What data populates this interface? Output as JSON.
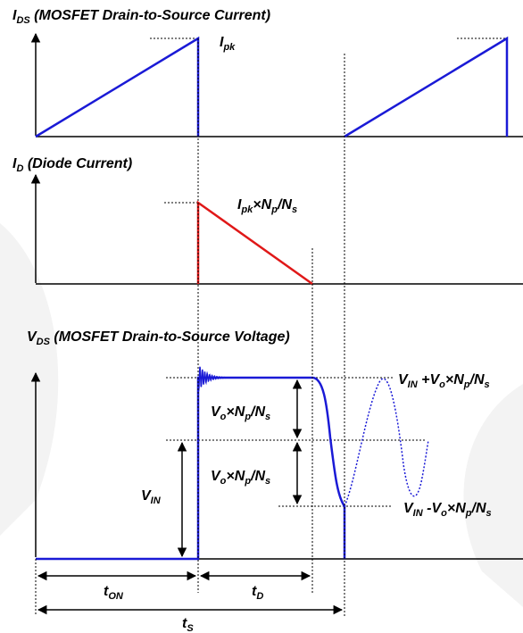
{
  "colors": {
    "blue": "#1a1ad6",
    "red": "#e01818",
    "black": "#000000"
  },
  "ids_panel": {
    "title_symbol": "I",
    "title_sub": "DS",
    "title_rest": " (MOSFET Drain-to-Source Current)",
    "ipk_symbol": "I",
    "ipk_sub": "pk"
  },
  "id_panel": {
    "title_symbol": "I",
    "title_sub": "D",
    "title_rest": " (Diode Current)",
    "peak_label": {
      "t1": "I",
      "s1": "pk",
      "t2": "×N",
      "s2": "p",
      "t3": "/N",
      "s3": "s"
    }
  },
  "vds_panel": {
    "title_symbol": "V",
    "title_sub": "DS",
    "title_rest": " (MOSFET Drain-to-Source Voltage)",
    "top_label": {
      "t1": "V",
      "s1": "IN",
      "t2": " +V",
      "s2": "o",
      "t3": "×N",
      "s3": "p",
      "t4": "/N",
      "s4": "s"
    },
    "bottom_label": {
      "t1": "V",
      "s1": "IN",
      "t2": " -V",
      "s2": "o",
      "t3": "×N",
      "s3": "p",
      "t4": "/N",
      "s4": "s"
    },
    "reflected_upper": {
      "t1": "V",
      "s1": "o",
      "t2": "×N",
      "s2": "p",
      "t3": "/N",
      "s3": "s"
    },
    "reflected_lower": {
      "t1": "V",
      "s1": "o",
      "t2": "×N",
      "s2": "p",
      "t3": "/N",
      "s3": "s"
    },
    "vin_label": {
      "t1": "V",
      "s1": "IN"
    }
  },
  "timing": {
    "t_on": {
      "t1": "t",
      "s1": "ON"
    },
    "t_d": {
      "t1": "t",
      "s1": "D"
    },
    "t_s": {
      "t1": "t",
      "s1": "S"
    }
  }
}
